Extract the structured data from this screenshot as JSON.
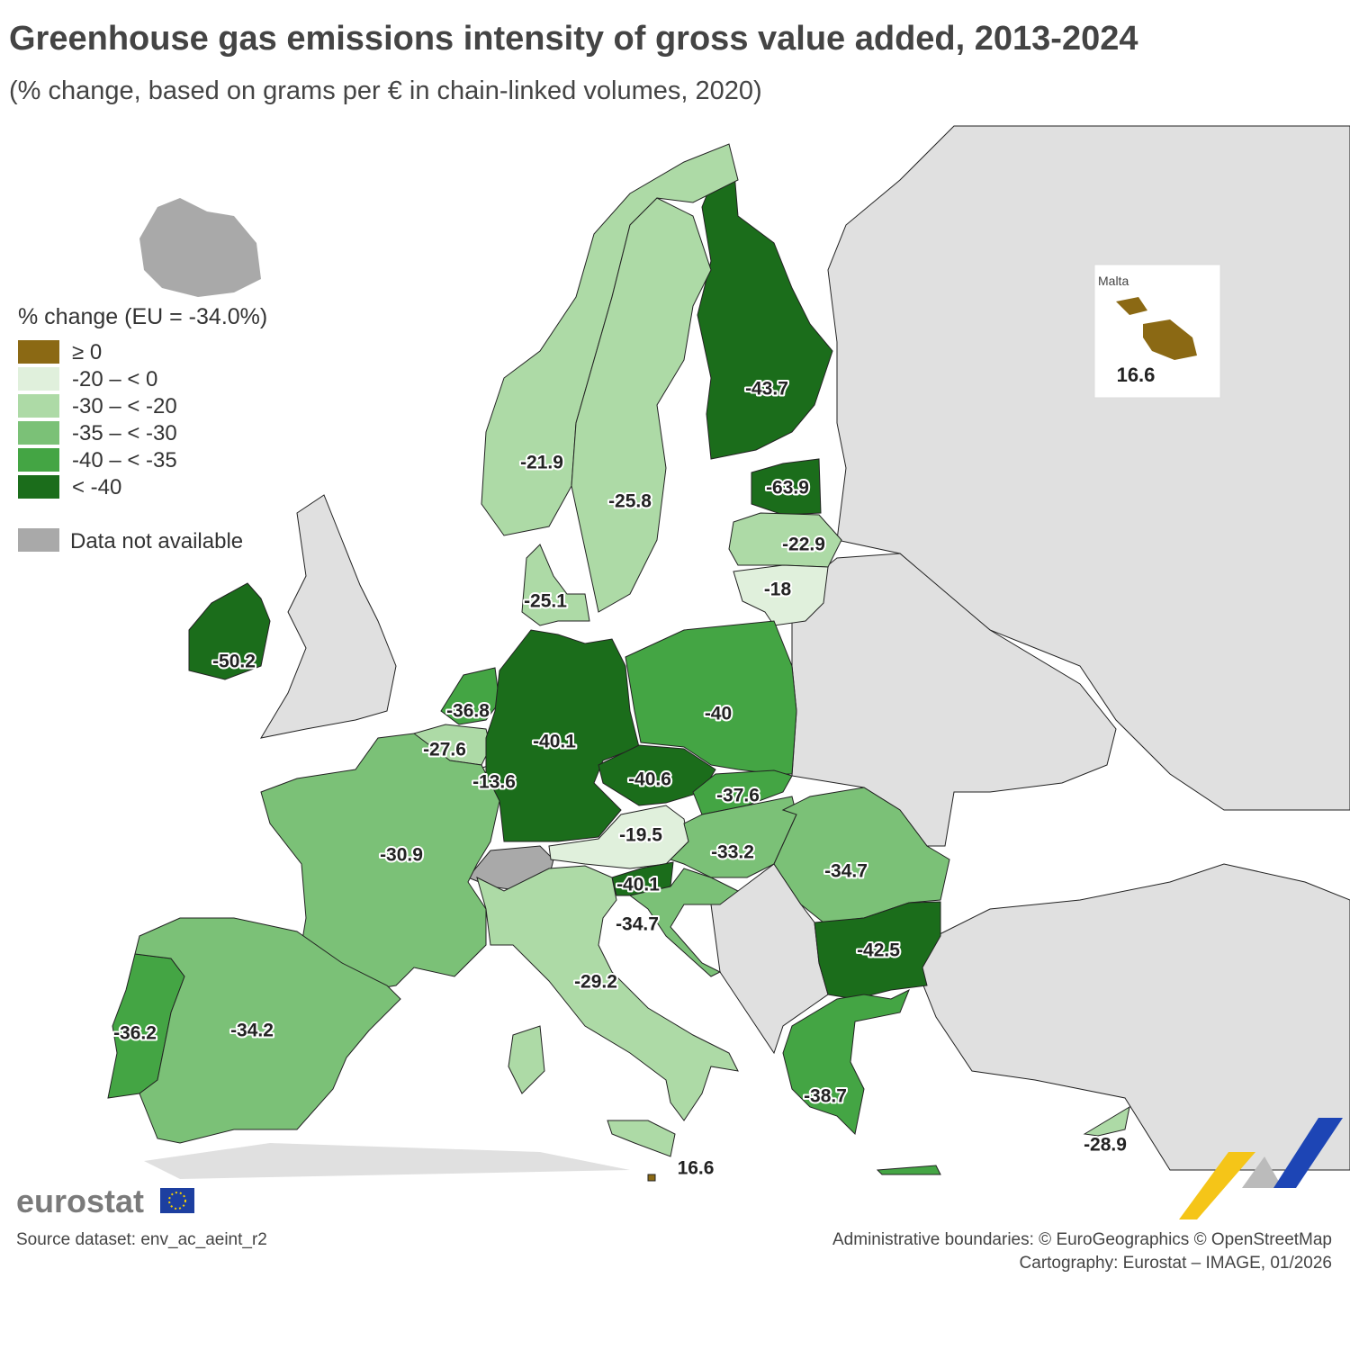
{
  "title": "Greenhouse gas emissions intensity of gross value added, 2013-2024",
  "subtitle": "(% change, based on grams per € in chain-linked volumes, 2020)",
  "legend": {
    "title": "% change (EU = -34.0%)",
    "classes": [
      {
        "label": "≥ 0",
        "color": "#8b6914"
      },
      {
        "label": "-20 – < 0",
        "color": "#e0f0dc"
      },
      {
        "label": "-30 – < -20",
        "color": "#addaa6"
      },
      {
        "label": "-35 – < -30",
        "color": "#7bc177"
      },
      {
        "label": "-40 – < -35",
        "color": "#44a544"
      },
      {
        "label": "< -40",
        "color": "#1b6d1b"
      }
    ],
    "na": {
      "label": "Data not available",
      "color": "#a9a9a9"
    }
  },
  "inset": {
    "title": "Malta",
    "value": 16.6,
    "color": "#8b6914"
  },
  "regions": [
    {
      "value": -43.7,
      "color": "#1b6d1b"
    },
    {
      "value": -63.9,
      "color": "#1b6d1b"
    },
    {
      "value": -22.9,
      "color": "#addaa6"
    },
    {
      "value": -18,
      "color": "#e0f0dc"
    },
    {
      "value": -21.9,
      "color": "#addaa6"
    },
    {
      "value": -25.8,
      "color": "#addaa6"
    },
    {
      "value": -25.1,
      "color": "#addaa6"
    },
    {
      "value": -50.2,
      "color": "#1b6d1b"
    },
    {
      "value": -36.8,
      "color": "#44a544"
    },
    {
      "value": -27.6,
      "color": "#addaa6"
    },
    {
      "value": -13.6,
      "color": "#e0f0dc"
    },
    {
      "value": -40.1,
      "color": "#1b6d1b"
    },
    {
      "value": -40,
      "color": "#44a544"
    },
    {
      "value": -40.6,
      "color": "#1b6d1b"
    },
    {
      "value": -37.6,
      "color": "#44a544"
    },
    {
      "value": -19.5,
      "color": "#e0f0dc"
    },
    {
      "value": -33.2,
      "color": "#7bc177"
    },
    {
      "value": -34.7,
      "color": "#7bc177"
    },
    {
      "value": -40.1,
      "color": "#1b6d1b"
    },
    {
      "value": -34.7,
      "color": "#7bc177"
    },
    {
      "value": -42.5,
      "color": "#1b6d1b"
    },
    {
      "value": -30.9,
      "color": "#7bc177"
    },
    {
      "value": -29.2,
      "color": "#addaa6"
    },
    {
      "value": -36.2,
      "color": "#44a544"
    },
    {
      "value": -34.2,
      "color": "#7bc177"
    },
    {
      "value": -38.7,
      "color": "#44a544"
    },
    {
      "value": -28.9,
      "color": "#addaa6"
    },
    {
      "value": 16.6,
      "color": "#8b6914"
    }
  ],
  "logo": "eurostat",
  "source": "Source dataset: env_ac_aeint_r2",
  "credits": [
    "Administrative boundaries: © EuroGeographics © OpenStreetMap",
    "Cartography: Eurostat – IMAGE, 01/2026"
  ]
}
